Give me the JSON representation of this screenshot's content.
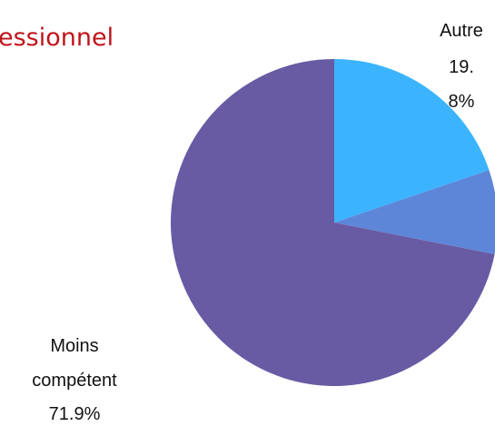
{
  "chart_data": {
    "type": "pie",
    "title": "essionnel",
    "categories": [
      "Autre",
      null,
      "Moins compétent"
    ],
    "values": [
      19.8,
      8.3,
      71.9
    ],
    "value_labels": [
      "19.8%",
      null,
      "71.9%"
    ],
    "colors": [
      "#3bb4fd",
      "#5e86d8",
      "#685ba4"
    ]
  }
}
